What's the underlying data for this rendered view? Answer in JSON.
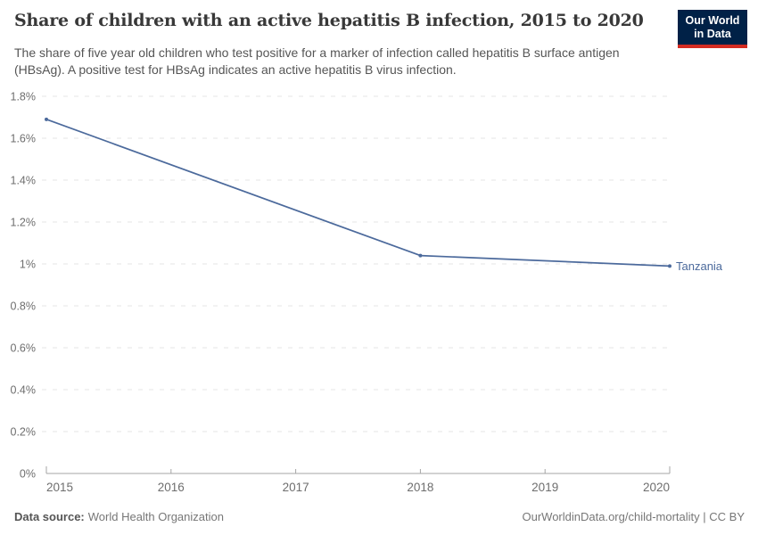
{
  "header": {
    "title": "Share of children with an active hepatitis B infection, 2015 to 2020",
    "subtitle_line1": "The share of five year old children who test positive for a marker of infection called hepatitis B surface antigen",
    "subtitle_line2": "(HBsAg). A positive test for HBsAg indicates an active hepatitis B virus infection.",
    "logo": {
      "line1": "Our World",
      "line2": "in Data"
    }
  },
  "footer": {
    "datasource_label": "Data source:",
    "datasource_value": "World Health Organization",
    "credit": "OurWorldinData.org/child-mortality | CC BY"
  },
  "colors": {
    "line": "#4C6A9C",
    "logo_bg": "#002147",
    "logo_accent": "#D42B21",
    "grid": "#e4e4e4",
    "axis": "#a5a5a5",
    "tick_text": "#6e6e6e"
  },
  "chart_data": {
    "type": "line",
    "title": "Share of children with an active hepatitis B infection, 2015 to 2020",
    "xlabel": "",
    "ylabel": "",
    "unit": "%",
    "xlim": [
      2015,
      2020
    ],
    "ylim": [
      0,
      1.8
    ],
    "grid": "horizontal-dashed",
    "legend_position": "line-end-label",
    "x_ticks": [
      {
        "v": 2015,
        "label": "2015"
      },
      {
        "v": 2016,
        "label": "2016"
      },
      {
        "v": 2017,
        "label": "2017"
      },
      {
        "v": 2018,
        "label": "2018"
      },
      {
        "v": 2019,
        "label": "2019"
      },
      {
        "v": 2020,
        "label": "2020"
      }
    ],
    "y_ticks": [
      {
        "v": 0,
        "label": "0%"
      },
      {
        "v": 0.2,
        "label": "0.2%"
      },
      {
        "v": 0.4,
        "label": "0.4%"
      },
      {
        "v": 0.6,
        "label": "0.6%"
      },
      {
        "v": 0.8,
        "label": "0.8%"
      },
      {
        "v": 1,
        "label": "1%"
      },
      {
        "v": 1.2,
        "label": "1.2%"
      },
      {
        "v": 1.4,
        "label": "1.4%"
      },
      {
        "v": 1.6,
        "label": "1.6%"
      },
      {
        "v": 1.8,
        "label": "1.8%"
      }
    ],
    "series": [
      {
        "name": "Tanzania",
        "color": "#4C6A9C",
        "points": [
          [
            2015,
            1.69
          ],
          [
            2018,
            1.04
          ],
          [
            2020,
            0.99
          ]
        ]
      }
    ]
  }
}
